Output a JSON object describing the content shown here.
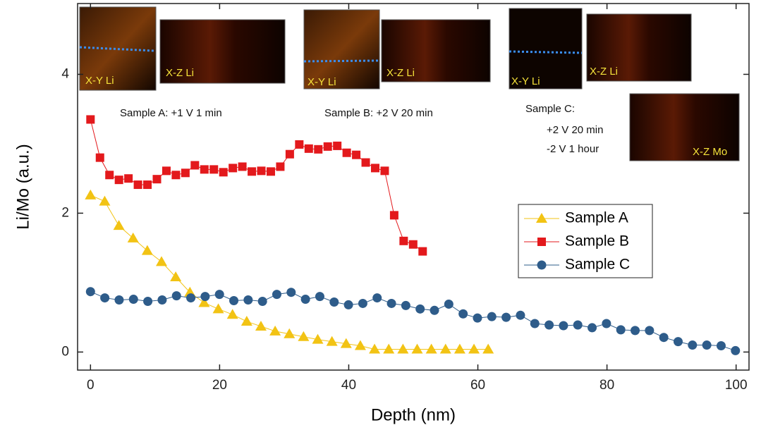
{
  "chart_data": {
    "type": "line",
    "xlabel": "Depth (nm)",
    "ylabel": "Li/Mo (a.u.)",
    "xlim": [
      -2,
      102
    ],
    "ylim": [
      -0.26,
      5.02
    ],
    "xticks": [
      0,
      20,
      40,
      60,
      80,
      100
    ],
    "yticks": [
      0,
      2,
      4
    ],
    "legend": "center-right",
    "annotations": [
      "Sample A:  +1 V 1 min",
      "Sample B:  +2 V 20 min",
      "Sample C:",
      "+2 V 20 min",
      "-2 V 1 hour"
    ],
    "inset_labels": [
      "X-Y Li",
      "X-Z Li",
      "X-Y Li",
      "X-Z Li",
      "X-Y Li",
      "X-Z Li",
      "X-Z Mo"
    ],
    "series": [
      {
        "name": "Sample A",
        "color": "#f2c314",
        "marker": "triangle",
        "x": [
          0,
          2.2,
          4.4,
          6.6,
          8.8,
          11,
          13.2,
          15.4,
          17.6,
          19.8,
          22,
          24.2,
          26.4,
          28.6,
          30.8,
          33,
          35.2,
          37.4,
          39.6,
          41.8,
          44,
          46.2,
          48.4,
          50.6,
          52.8,
          55,
          57.2,
          59.4,
          61.6
        ],
        "values": [
          2.26,
          2.17,
          1.82,
          1.64,
          1.46,
          1.3,
          1.08,
          0.86,
          0.71,
          0.62,
          0.54,
          0.44,
          0.37,
          0.3,
          0.26,
          0.22,
          0.18,
          0.15,
          0.12,
          0.09,
          0.04,
          0.04,
          0.04,
          0.04,
          0.04,
          0.04,
          0.04,
          0.04,
          0.04
        ]
      },
      {
        "name": "Sample B",
        "color": "#e3191c",
        "marker": "square",
        "x": [
          0,
          1.47,
          2.94,
          4.41,
          5.88,
          7.35,
          8.82,
          10.29,
          11.76,
          13.23,
          14.7,
          16.17,
          17.64,
          19.11,
          20.58,
          22.05,
          23.52,
          24.99,
          26.46,
          27.93,
          29.4,
          30.87,
          32.34,
          33.81,
          35.28,
          36.75,
          38.22,
          39.69,
          41.16,
          42.63,
          44.1,
          45.57,
          47.04,
          48.51,
          49.98,
          51.45
        ],
        "values": [
          3.35,
          2.8,
          2.55,
          2.48,
          2.5,
          2.41,
          2.41,
          2.49,
          2.61,
          2.55,
          2.58,
          2.69,
          2.63,
          2.63,
          2.59,
          2.65,
          2.67,
          2.6,
          2.61,
          2.6,
          2.67,
          2.85,
          2.99,
          2.93,
          2.92,
          2.96,
          2.97,
          2.87,
          2.84,
          2.73,
          2.65,
          2.61,
          1.97,
          1.6,
          1.55,
          1.45
        ]
      },
      {
        "name": "Sample C",
        "color": "#2e5c8a",
        "marker": "circle",
        "x": [
          0,
          2.22,
          4.44,
          6.66,
          8.88,
          11.1,
          13.32,
          15.54,
          17.76,
          19.98,
          22.2,
          24.42,
          26.64,
          28.86,
          31.08,
          33.3,
          35.52,
          37.74,
          39.96,
          42.18,
          44.4,
          46.62,
          48.84,
          51.06,
          53.28,
          55.5,
          57.72,
          59.94,
          62.16,
          64.38,
          66.6,
          68.82,
          71.04,
          73.26,
          75.48,
          77.7,
          79.92,
          82.14,
          84.36,
          86.58,
          88.8,
          91.02,
          93.24,
          95.46,
          97.68,
          99.9
        ],
        "values": [
          0.87,
          0.78,
          0.75,
          0.76,
          0.73,
          0.75,
          0.81,
          0.78,
          0.8,
          0.83,
          0.74,
          0.75,
          0.73,
          0.83,
          0.86,
          0.76,
          0.8,
          0.72,
          0.68,
          0.7,
          0.78,
          0.7,
          0.67,
          0.62,
          0.6,
          0.69,
          0.55,
          0.49,
          0.51,
          0.5,
          0.53,
          0.41,
          0.39,
          0.38,
          0.39,
          0.35,
          0.41,
          0.32,
          0.31,
          0.31,
          0.21,
          0.15,
          0.1,
          0.1,
          0.09,
          0.02
        ]
      }
    ]
  }
}
